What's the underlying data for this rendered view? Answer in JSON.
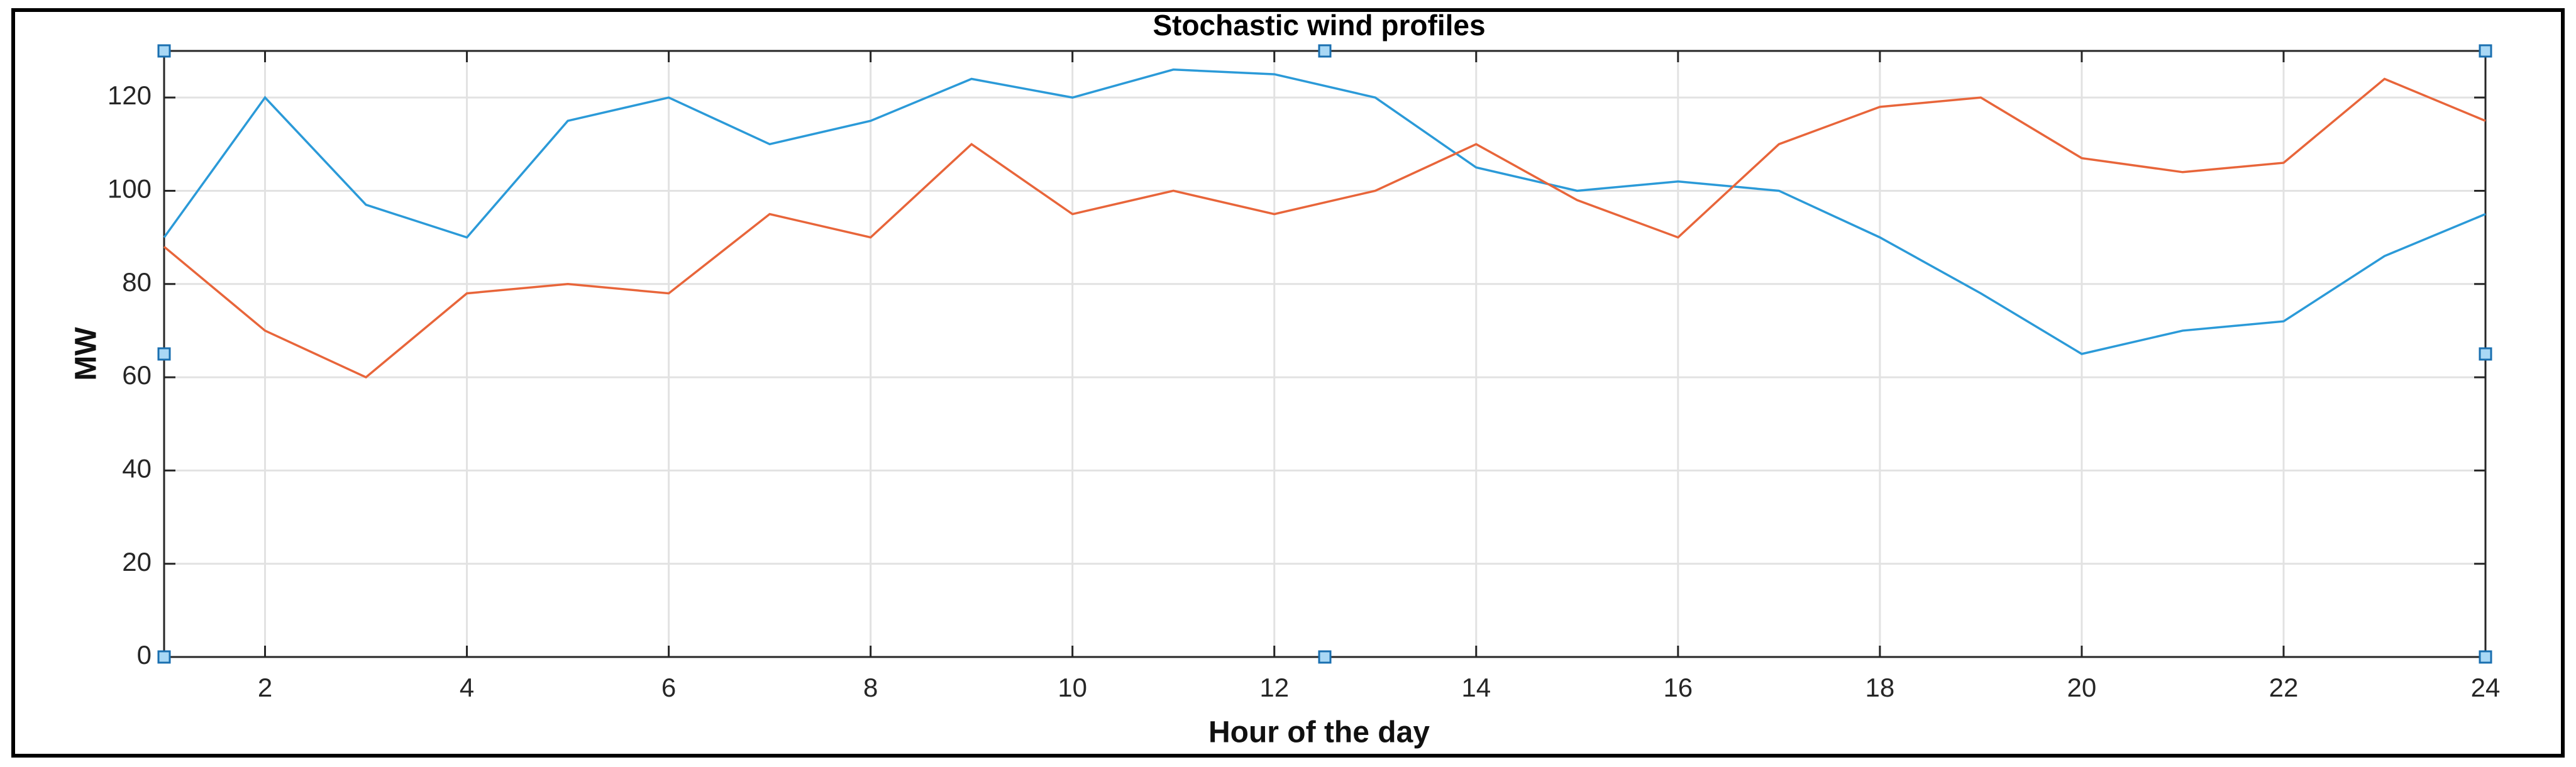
{
  "chart_data": {
    "type": "line",
    "title": "Stochastic wind  profiles",
    "x_label": "Hour of the day",
    "y_label": "MW",
    "x": [
      1,
      2,
      3,
      4,
      5,
      6,
      7,
      8,
      9,
      10,
      11,
      12,
      13,
      14,
      15,
      16,
      17,
      18,
      19,
      20,
      21,
      22,
      23,
      24
    ],
    "series": [
      {
        "color": "#2b9ad8",
        "values": [
          90,
          120,
          97,
          90,
          115,
          120,
          110,
          115,
          124,
          120,
          126,
          125,
          120,
          105,
          100,
          102,
          100,
          90,
          78,
          65,
          70,
          72,
          86,
          95
        ]
      },
      {
        "color": "#e8653a",
        "values": [
          88,
          70,
          60,
          78,
          80,
          78,
          95,
          90,
          110,
          95,
          100,
          95,
          100,
          110,
          98,
          90,
          110,
          118,
          120,
          107,
          104,
          106,
          124,
          115
        ]
      }
    ],
    "xlim": [
      1,
      24
    ],
    "xticks": [
      2,
      4,
      6,
      8,
      10,
      12,
      14,
      16,
      18,
      20,
      22,
      24
    ],
    "ylim": [
      0,
      130
    ],
    "yticks": [
      0,
      20,
      40,
      60,
      80,
      100,
      120
    ],
    "grid": true
  }
}
